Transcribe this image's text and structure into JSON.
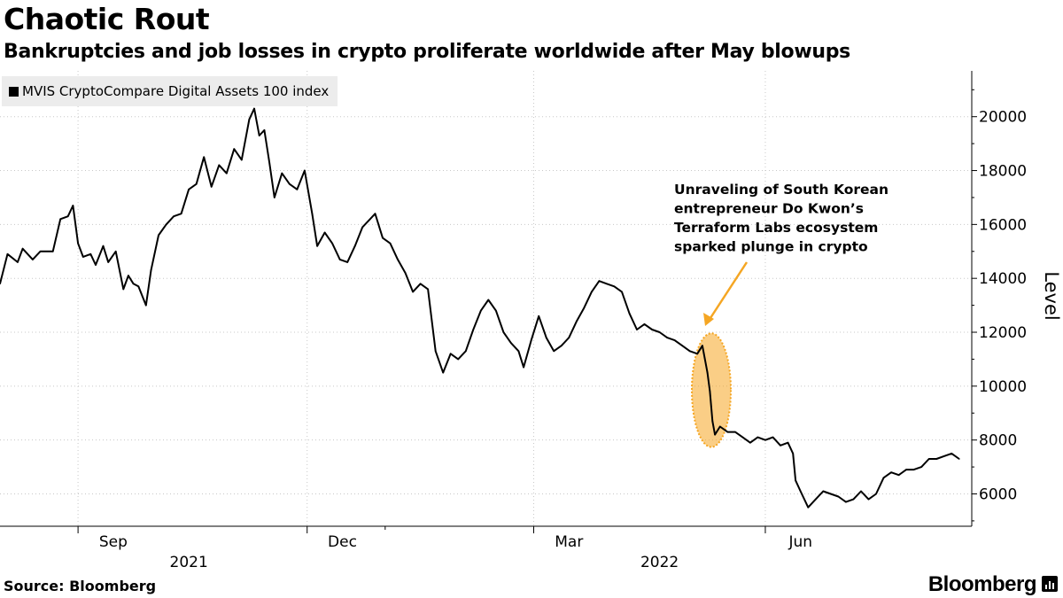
{
  "header": {
    "title": "Chaotic Rout",
    "subtitle": "Bankruptcies and job losses in crypto proliferate worldwide after May blowups"
  },
  "legend": {
    "label": "MVIS CryptoCompare Digital Assets 100 index"
  },
  "annotation": {
    "lines": [
      "Unraveling of South Korean",
      "entrepreneur Do Kwon’s",
      "Terraform Labs ecosystem",
      "sparked plunge in crypto"
    ],
    "color": "#f5a623"
  },
  "footer": {
    "source": "Source: Bloomberg",
    "brand": "Bloomberg"
  },
  "chart_data": {
    "type": "line",
    "ylabel": "Level",
    "ylim": [
      4800,
      21700
    ],
    "yticks": [
      6000,
      8000,
      10000,
      12000,
      14000,
      16000,
      18000,
      20000
    ],
    "month_labels": [
      "Sep",
      "Dec",
      "Mar",
      "Jun"
    ],
    "year_labels": [
      "2021",
      "2022"
    ],
    "grid": true,
    "legend_position": "top-left",
    "line_color": "#000000",
    "highlight_range": [
      "2022-05-07",
      "2022-05-12"
    ],
    "series": [
      {
        "name": "MVIS CryptoCompare Digital Assets 100 index",
        "points": [
          [
            "2021-08-01",
            13800
          ],
          [
            "2021-08-04",
            14900
          ],
          [
            "2021-08-08",
            14600
          ],
          [
            "2021-08-10",
            15100
          ],
          [
            "2021-08-14",
            14700
          ],
          [
            "2021-08-17",
            15000
          ],
          [
            "2021-08-22",
            15000
          ],
          [
            "2021-08-25",
            16200
          ],
          [
            "2021-08-28",
            16300
          ],
          [
            "2021-08-30",
            16700
          ],
          [
            "2021-09-01",
            15300
          ],
          [
            "2021-09-03",
            14800
          ],
          [
            "2021-09-06",
            14900
          ],
          [
            "2021-09-08",
            14500
          ],
          [
            "2021-09-11",
            15200
          ],
          [
            "2021-09-13",
            14600
          ],
          [
            "2021-09-16",
            15000
          ],
          [
            "2021-09-19",
            13600
          ],
          [
            "2021-09-21",
            14100
          ],
          [
            "2021-09-23",
            13800
          ],
          [
            "2021-09-25",
            13700
          ],
          [
            "2021-09-28",
            13000
          ],
          [
            "2021-09-30",
            14300
          ],
          [
            "2021-10-03",
            15600
          ],
          [
            "2021-10-06",
            16000
          ],
          [
            "2021-10-09",
            16300
          ],
          [
            "2021-10-12",
            16400
          ],
          [
            "2021-10-15",
            17300
          ],
          [
            "2021-10-18",
            17500
          ],
          [
            "2021-10-21",
            18500
          ],
          [
            "2021-10-24",
            17400
          ],
          [
            "2021-10-27",
            18200
          ],
          [
            "2021-10-30",
            17900
          ],
          [
            "2021-11-02",
            18800
          ],
          [
            "2021-11-05",
            18400
          ],
          [
            "2021-11-08",
            19900
          ],
          [
            "2021-11-10",
            20300
          ],
          [
            "2021-11-12",
            19300
          ],
          [
            "2021-11-14",
            19500
          ],
          [
            "2021-11-16",
            18300
          ],
          [
            "2021-11-18",
            17000
          ],
          [
            "2021-11-21",
            17900
          ],
          [
            "2021-11-24",
            17500
          ],
          [
            "2021-11-27",
            17300
          ],
          [
            "2021-11-30",
            18000
          ],
          [
            "2021-12-03",
            16400
          ],
          [
            "2021-12-05",
            15200
          ],
          [
            "2021-12-08",
            15700
          ],
          [
            "2021-12-11",
            15300
          ],
          [
            "2021-12-14",
            14700
          ],
          [
            "2021-12-17",
            14600
          ],
          [
            "2021-12-20",
            15200
          ],
          [
            "2021-12-23",
            15900
          ],
          [
            "2021-12-26",
            16200
          ],
          [
            "2021-12-28",
            16400
          ],
          [
            "2021-12-31",
            15500
          ],
          [
            "2022-01-03",
            15300
          ],
          [
            "2022-01-06",
            14700
          ],
          [
            "2022-01-09",
            14200
          ],
          [
            "2022-01-12",
            13500
          ],
          [
            "2022-01-15",
            13800
          ],
          [
            "2022-01-18",
            13600
          ],
          [
            "2022-01-21",
            11300
          ],
          [
            "2022-01-24",
            10500
          ],
          [
            "2022-01-27",
            11200
          ],
          [
            "2022-01-30",
            11000
          ],
          [
            "2022-02-02",
            11300
          ],
          [
            "2022-02-05",
            12100
          ],
          [
            "2022-02-08",
            12800
          ],
          [
            "2022-02-11",
            13200
          ],
          [
            "2022-02-14",
            12800
          ],
          [
            "2022-02-17",
            12000
          ],
          [
            "2022-02-20",
            11600
          ],
          [
            "2022-02-23",
            11300
          ],
          [
            "2022-02-25",
            10700
          ],
          [
            "2022-02-28",
            11700
          ],
          [
            "2022-03-03",
            12600
          ],
          [
            "2022-03-06",
            11800
          ],
          [
            "2022-03-09",
            11300
          ],
          [
            "2022-03-12",
            11500
          ],
          [
            "2022-03-15",
            11800
          ],
          [
            "2022-03-18",
            12400
          ],
          [
            "2022-03-21",
            12900
          ],
          [
            "2022-03-24",
            13500
          ],
          [
            "2022-03-27",
            13900
          ],
          [
            "2022-03-30",
            13800
          ],
          [
            "2022-04-02",
            13700
          ],
          [
            "2022-04-05",
            13500
          ],
          [
            "2022-04-08",
            12700
          ],
          [
            "2022-04-11",
            12100
          ],
          [
            "2022-04-14",
            12300
          ],
          [
            "2022-04-17",
            12100
          ],
          [
            "2022-04-20",
            12000
          ],
          [
            "2022-04-23",
            11800
          ],
          [
            "2022-04-26",
            11700
          ],
          [
            "2022-04-29",
            11500
          ],
          [
            "2022-05-02",
            11300
          ],
          [
            "2022-05-05",
            11200
          ],
          [
            "2022-05-07",
            11500
          ],
          [
            "2022-05-09",
            10500
          ],
          [
            "2022-05-10",
            9800
          ],
          [
            "2022-05-11",
            8700
          ],
          [
            "2022-05-12",
            8200
          ],
          [
            "2022-05-14",
            8500
          ],
          [
            "2022-05-17",
            8300
          ],
          [
            "2022-05-20",
            8300
          ],
          [
            "2022-05-23",
            8100
          ],
          [
            "2022-05-26",
            7900
          ],
          [
            "2022-05-29",
            8100
          ],
          [
            "2022-06-01",
            8000
          ],
          [
            "2022-06-04",
            8100
          ],
          [
            "2022-06-07",
            7800
          ],
          [
            "2022-06-10",
            7900
          ],
          [
            "2022-06-12",
            7500
          ],
          [
            "2022-06-13",
            6500
          ],
          [
            "2022-06-15",
            6100
          ],
          [
            "2022-06-18",
            5500
          ],
          [
            "2022-06-21",
            5800
          ],
          [
            "2022-06-24",
            6100
          ],
          [
            "2022-06-27",
            6000
          ],
          [
            "2022-06-30",
            5900
          ],
          [
            "2022-07-03",
            5700
          ],
          [
            "2022-07-06",
            5800
          ],
          [
            "2022-07-09",
            6100
          ],
          [
            "2022-07-12",
            5800
          ],
          [
            "2022-07-15",
            6000
          ],
          [
            "2022-07-18",
            6600
          ],
          [
            "2022-07-21",
            6800
          ],
          [
            "2022-07-24",
            6700
          ],
          [
            "2022-07-27",
            6900
          ],
          [
            "2022-07-30",
            6900
          ],
          [
            "2022-08-02",
            7000
          ],
          [
            "2022-08-05",
            7300
          ],
          [
            "2022-08-08",
            7300
          ],
          [
            "2022-08-11",
            7400
          ],
          [
            "2022-08-14",
            7500
          ],
          [
            "2022-08-17",
            7300
          ]
        ]
      }
    ]
  }
}
